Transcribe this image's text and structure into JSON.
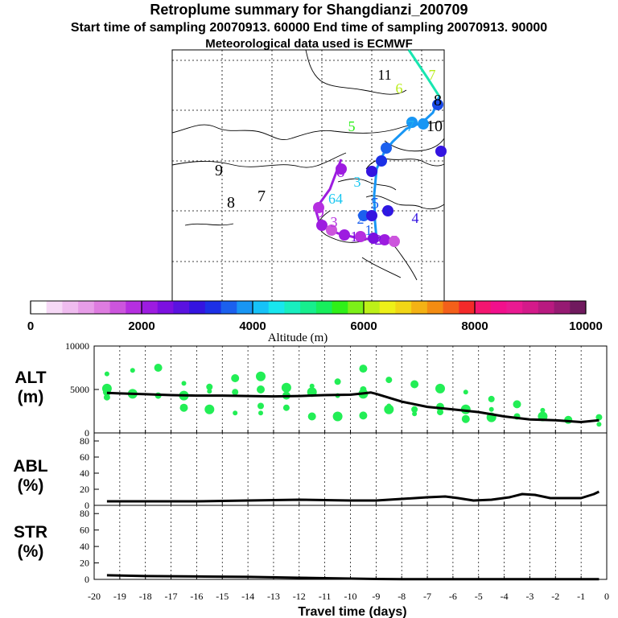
{
  "title": "Retroplume summary for Shangdianzi_200709",
  "sampling": "Start time of sampling 20070913. 60000     End time of sampling 20070913. 90000",
  "met": "Meteorological data used is ECMWF",
  "colorbar": {
    "title": "Altitude (m)",
    "ticks": [
      "0",
      "2000",
      "4000",
      "6000",
      "8000",
      "10000"
    ],
    "colors": [
      "#ffffff",
      "#f6d9f6",
      "#efbcef",
      "#e79de8",
      "#de7ce0",
      "#cc55dd",
      "#b52fe0",
      "#9d1ce0",
      "#7c10e0",
      "#5a12e0",
      "#3414e0",
      "#1c30e6",
      "#1b60ee",
      "#1896f4",
      "#16c2f8",
      "#18e6ee",
      "#18eebf",
      "#17ee8e",
      "#17ee5c",
      "#2ff018",
      "#7cf018",
      "#bdf018",
      "#eef018",
      "#f2d616",
      "#f4b214",
      "#f48c12",
      "#f4601a",
      "#f42a2a",
      "#f41670",
      "#f2108c",
      "#ea1a92",
      "#d41a8a",
      "#b81a80",
      "#961a72",
      "#701a5e"
    ]
  },
  "map": {
    "labels": [
      {
        "t": "11",
        "c": "#000000"
      },
      {
        "t": "7",
        "c": "#b8ec18"
      },
      {
        "t": "6",
        "c": "#b8ec18"
      },
      {
        "t": "8",
        "c": "#000000"
      },
      {
        "t": "5",
        "c": "#2cf018"
      },
      {
        "t": "7",
        "c": "#1db0f0"
      },
      {
        "t": "10",
        "c": "#000000"
      },
      {
        "t": "9",
        "c": "#000000"
      },
      {
        "t": "8",
        "c": "#000000"
      },
      {
        "t": "7",
        "c": "#000000"
      },
      {
        "t": "6",
        "c": "#9d1ce0"
      },
      {
        "t": "3",
        "c": "#18c6f0"
      },
      {
        "t": "64",
        "c": "#18c6f0"
      },
      {
        "t": "4",
        "c": "#3414e0"
      },
      {
        "t": "2",
        "c": "#1c60ee"
      },
      {
        "t": "5",
        "c": "#1c60ee"
      },
      {
        "t": "6",
        "c": "#2024e4"
      },
      {
        "t": "1",
        "c": "#1c60ee"
      },
      {
        "t": "9",
        "c": "#b52fe0"
      },
      {
        "t": "3",
        "c": "#b52fe0"
      },
      {
        "t": "5",
        "c": "#cc55dd"
      },
      {
        "t": "2",
        "c": "#7c10e0"
      },
      {
        "t": "1",
        "c": "#7c10e0"
      }
    ]
  },
  "chart_data": [
    {
      "type": "line",
      "panel": "ALT",
      "ylabel": "ALT\n(m)",
      "ylabel_lines": [
        "ALT",
        "(m)"
      ],
      "ylim": [
        0,
        10000
      ],
      "yticks": [
        "10000",
        "5000",
        "0"
      ],
      "x": [
        -19.5,
        -19,
        -18,
        -17,
        -16,
        -15,
        -14,
        -13,
        -12,
        -11,
        -10,
        -9.5,
        -9.2,
        -9,
        -8,
        -7,
        -6,
        -5,
        -4,
        -3,
        -2,
        -1,
        -0.3
      ],
      "series": [
        {
          "name": "mean altitude",
          "values": [
            4600,
            4550,
            4450,
            4350,
            4300,
            4300,
            4250,
            4200,
            4250,
            4350,
            4400,
            4550,
            4650,
            4500,
            3600,
            3000,
            2700,
            2400,
            1900,
            1550,
            1450,
            1250,
            1450
          ]
        }
      ],
      "scatter": {
        "x": [
          -19.5,
          -19.5,
          -19.5,
          -19.5,
          -18.5,
          -18.5,
          -17.5,
          -17.5,
          -16.5,
          -16.5,
          -16.5,
          -15.5,
          -15.5,
          -15.5,
          -14.5,
          -14.5,
          -14.5,
          -13.5,
          -13.5,
          -13.5,
          -13.5,
          -12.5,
          -12.5,
          -12.5,
          -11.5,
          -11.5,
          -11.5,
          -10.5,
          -10.5,
          -10.5,
          -9.5,
          -9.5,
          -9.5,
          -9.5,
          -9.5,
          -8.5,
          -8.5,
          -8.5,
          -7.5,
          -7.5,
          -7.5,
          -6.5,
          -6.5,
          -6.5,
          -5.5,
          -5.5,
          -5.5,
          -4.5,
          -4.5,
          -4.5,
          -3.5,
          -3.5,
          -2.5,
          -2.5,
          -1.5,
          -0.3,
          -0.3
        ],
        "y": [
          6800,
          5100,
          4700,
          4100,
          7200,
          4500,
          7500,
          4300,
          5700,
          4300,
          2900,
          5300,
          4800,
          2700,
          6300,
          4700,
          2300,
          6500,
          5000,
          3100,
          2300,
          5200,
          4300,
          2900,
          5400,
          4700,
          1900,
          5900,
          4300,
          1900,
          7400,
          5000,
          4700,
          4500,
          2000,
          6100,
          3100,
          2700,
          5600,
          2700,
          2200,
          5100,
          3000,
          2400,
          4700,
          2700,
          1600,
          3900,
          2700,
          1800,
          3300,
          1900,
          2600,
          1900,
          1500,
          1800,
          1000
        ],
        "color": "#22ee55"
      }
    },
    {
      "type": "line",
      "panel": "ABL",
      "ylabel": "ABL\n(%)",
      "ylabel_lines": [
        "ABL",
        "(%)"
      ],
      "ylim": [
        0,
        90
      ],
      "yticks": [
        "80",
        "60",
        "40",
        "20",
        "0"
      ],
      "x": [
        -19.5,
        -18,
        -16,
        -14,
        -12,
        -10,
        -9,
        -8,
        -7,
        -6.3,
        -5.8,
        -5.2,
        -4.5,
        -3.8,
        -3.3,
        -2.8,
        -2.2,
        -1.5,
        -1,
        -0.5,
        -0.3
      ],
      "series": [
        {
          "name": "ABL fraction",
          "values": [
            5,
            5,
            5,
            6,
            7,
            6,
            6,
            8,
            10,
            11,
            9,
            6,
            7,
            10,
            14,
            13,
            9,
            9,
            9,
            14,
            17
          ]
        }
      ]
    },
    {
      "type": "line",
      "panel": "STR",
      "ylabel": "STR\n(%)",
      "ylabel_lines": [
        "STR",
        "(%)"
      ],
      "ylim": [
        0,
        90
      ],
      "yticks": [
        "80",
        "60",
        "40",
        "20",
        "0"
      ],
      "x": [
        -19.5,
        -18,
        -16,
        -14,
        -12,
        -11,
        -10,
        -9,
        -8,
        -6,
        -4,
        -2,
        -0.3
      ],
      "series": [
        {
          "name": "STR fraction",
          "values": [
            5,
            4,
            3.5,
            3,
            2,
            1.5,
            1,
            0.5,
            0.3,
            0.2,
            0.2,
            0.2,
            0.2
          ]
        }
      ]
    }
  ],
  "xaxis": {
    "label": "Travel time (days)",
    "ticks": [
      "-20",
      "-19",
      "-18",
      "-17",
      "-16",
      "-15",
      "-14",
      "-13",
      "-12",
      "-11",
      "-10",
      "-9",
      "-8",
      "-7",
      "-6",
      "-5",
      "-4",
      "-3",
      "-2",
      "-1",
      "0"
    ]
  }
}
